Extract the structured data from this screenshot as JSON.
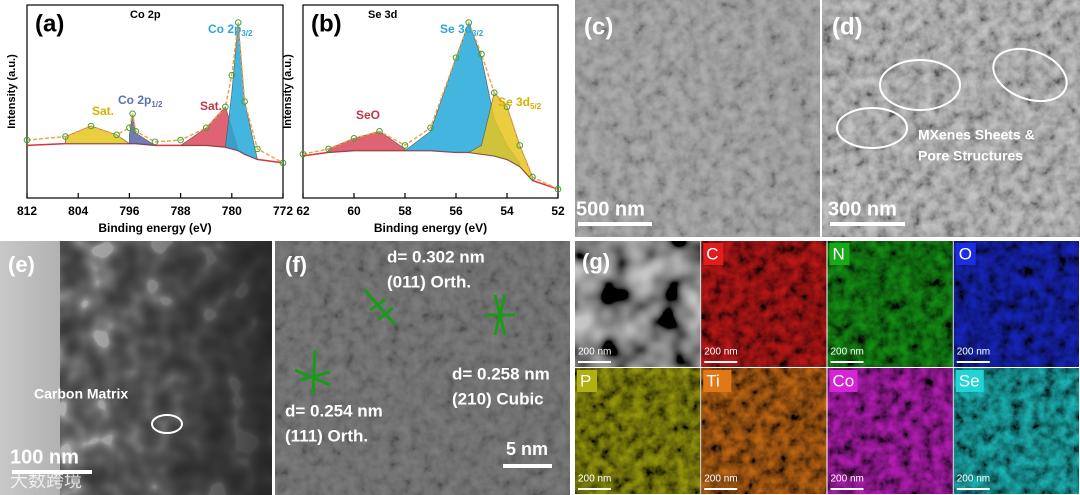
{
  "chart_data": [
    {
      "type": "line",
      "panel": "(a)",
      "title": "Co 2p",
      "xlabel": "Binding energy (eV)",
      "ylabel": "Intensity (a.u.)",
      "xlim": [
        812,
        772
      ],
      "xticks": [
        812,
        804,
        796,
        788,
        780,
        772
      ],
      "ylim": [
        0,
        110
      ],
      "x": [
        812,
        806,
        802,
        798,
        796,
        795.5,
        795,
        792,
        788,
        784,
        781,
        780,
        779,
        778,
        776,
        772
      ],
      "series": [
        {
          "role": "background",
          "color": "#d8343c",
          "values": [
            30,
            31,
            31,
            31,
            31,
            31,
            31,
            30,
            30,
            30,
            29,
            28,
            27,
            25,
            22,
            20
          ]
        },
        {
          "role": "component",
          "color": "#e8c61e",
          "values": [
            null,
            35,
            41,
            36,
            31,
            null,
            null,
            null,
            null,
            null,
            null,
            null,
            null,
            null,
            null,
            null
          ]
        },
        {
          "role": "component",
          "color": "#5b63a8",
          "values": [
            null,
            null,
            null,
            null,
            36,
            48,
            37,
            30,
            null,
            null,
            null,
            null,
            null,
            null,
            null,
            null
          ]
        },
        {
          "role": "component",
          "color": "#d8485a",
          "values": [
            null,
            null,
            null,
            null,
            null,
            null,
            null,
            null,
            30,
            40,
            52,
            40,
            27,
            null,
            null,
            null
          ]
        },
        {
          "role": "component",
          "color": "#22a8d8",
          "values": [
            null,
            null,
            null,
            null,
            null,
            null,
            null,
            null,
            null,
            null,
            29,
            60,
            100,
            55,
            22,
            null
          ]
        },
        {
          "role": "envelope",
          "color": "#f0a040",
          "values": [
            33,
            35,
            41,
            36,
            40,
            48,
            38,
            32,
            33,
            40,
            52,
            70,
            100,
            55,
            28,
            20
          ]
        }
      ],
      "annotations": [
        {
          "text": "Sat.",
          "color": "#d4b000"
        },
        {
          "text": "Co 2p",
          "sub": "1/2",
          "color": "#5a6fb5"
        },
        {
          "text": "Sat.",
          "color": "#c0364a"
        },
        {
          "text": "Co 2p",
          "sub": "3/2",
          "color": "#2aa7d6"
        }
      ]
    },
    {
      "type": "line",
      "panel": "(b)",
      "title": "Se 3d",
      "xlabel": "Binding energy (eV)",
      "ylabel": "Intensity (a.u.)",
      "xlim": [
        62,
        52
      ],
      "xticks": [
        62,
        60,
        58,
        56,
        54,
        52
      ],
      "ylim": [
        0,
        110
      ],
      "x": [
        62,
        61,
        60,
        59,
        58,
        57,
        56,
        55.5,
        55,
        54.5,
        54,
        53.5,
        53,
        52
      ],
      "series": [
        {
          "role": "background",
          "color": "#d8343c",
          "values": [
            24,
            26,
            27,
            27,
            27,
            27,
            26,
            26,
            25,
            24,
            22,
            18,
            10,
            5
          ]
        },
        {
          "role": "component",
          "color": "#d8485a",
          "values": [
            null,
            28,
            34,
            38,
            28,
            null,
            null,
            null,
            null,
            null,
            null,
            null,
            null,
            null
          ]
        },
        {
          "role": "component",
          "color": "#22a8d8",
          "values": [
            null,
            null,
            null,
            null,
            27,
            38,
            80,
            100,
            80,
            45,
            30,
            20,
            null,
            null
          ]
        },
        {
          "role": "component",
          "color": "#e8c61e",
          "values": [
            null,
            null,
            null,
            null,
            null,
            null,
            null,
            26,
            30,
            60,
            52,
            30,
            12,
            null
          ]
        },
        {
          "role": "envelope",
          "color": "#f0a040",
          "values": [
            25,
            28,
            34,
            38,
            30,
            40,
            80,
            100,
            82,
            60,
            52,
            30,
            12,
            5
          ]
        }
      ],
      "annotations": [
        {
          "text": "SeO",
          "color": "#c0364a"
        },
        {
          "text": "Se 3d",
          "sub": "3/2",
          "color": "#2aa7d6"
        },
        {
          "text": "Se 3d",
          "sub": "5/2",
          "color": "#d4b000"
        }
      ]
    }
  ],
  "panels": {
    "c": {
      "label": "(c)",
      "scale": "500 nm"
    },
    "d": {
      "label": "(d)",
      "scale": "300 nm",
      "note": [
        "MXenes Sheets &",
        "Pore Structures"
      ]
    },
    "e": {
      "label": "(e)",
      "scale": "100 nm",
      "note": "Carbon Matrix"
    },
    "f": {
      "label": "(f)",
      "scale": "5 nm",
      "spacings": [
        {
          "d": "d= 0.302 nm",
          "plane": "(011) Orth."
        },
        {
          "d": "d= 0.258 nm",
          "plane": "(210) Cubic"
        },
        {
          "d": "d= 0.254 nm",
          "plane": "(111) Orth."
        }
      ]
    },
    "g": {
      "label": "(g)",
      "maps": [
        {
          "scale": "200 nm",
          "color": "#e8e8e8"
        },
        {
          "element": "C",
          "color": "#e01c1c",
          "scale": "200 nm"
        },
        {
          "element": "N",
          "color": "#18a818",
          "scale": "200 nm"
        },
        {
          "element": "O",
          "color": "#1c2ce0",
          "scale": "200 nm"
        },
        {
          "element": "P",
          "color": "#b0b010",
          "scale": "200 nm"
        },
        {
          "element": "Ti",
          "color": "#e07818",
          "scale": "200 nm"
        },
        {
          "element": "Co",
          "color": "#d424d4",
          "scale": "200 nm"
        },
        {
          "element": "Se",
          "color": "#22d4d4",
          "scale": "200 nm"
        }
      ]
    }
  },
  "watermark": "大数跨境"
}
